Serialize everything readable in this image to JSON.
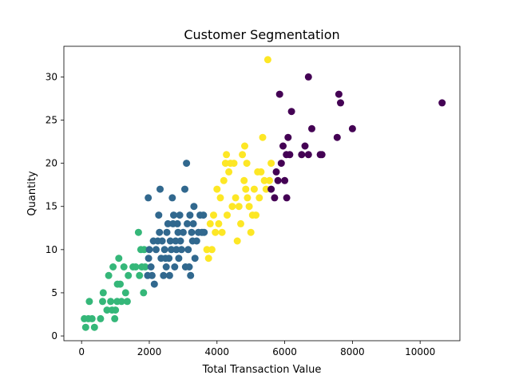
{
  "chart_data": {
    "type": "scatter",
    "title": "Customer Segmentation",
    "xlabel": "Total Transaction Value",
    "ylabel": "Quantity",
    "xlim": [
      -523,
      11175
    ],
    "ylim": [
      -0.55,
      33.55
    ],
    "xticks": [
      0,
      2000,
      4000,
      6000,
      8000,
      10000
    ],
    "yticks": [
      0,
      5,
      10,
      15,
      20,
      25,
      30
    ],
    "grid": false,
    "legend": "none",
    "colors": {
      "cluster_0": "#440154",
      "cluster_1": "#31688e",
      "cluster_2": "#35b779",
      "cluster_3": "#fde725"
    },
    "series": [
      {
        "cluster": "cluster_2",
        "points": [
          [
            80,
            2
          ],
          [
            120,
            1
          ],
          [
            200,
            2
          ],
          [
            230,
            4
          ],
          [
            310,
            2
          ],
          [
            380,
            1
          ],
          [
            560,
            2
          ],
          [
            620,
            4
          ],
          [
            640,
            5
          ],
          [
            750,
            3
          ],
          [
            800,
            7
          ],
          [
            860,
            4
          ],
          [
            900,
            3
          ],
          [
            930,
            8
          ],
          [
            980,
            2
          ],
          [
            1000,
            3
          ],
          [
            1050,
            4
          ],
          [
            1060,
            6
          ],
          [
            1100,
            9
          ],
          [
            1140,
            6
          ],
          [
            1180,
            4
          ],
          [
            1250,
            8
          ],
          [
            1300,
            5
          ],
          [
            1350,
            4
          ],
          [
            1380,
            7
          ],
          [
            1520,
            8
          ],
          [
            1600,
            8
          ],
          [
            1680,
            12
          ],
          [
            1710,
            7
          ],
          [
            1750,
            10
          ],
          [
            1780,
            8
          ],
          [
            1830,
            5
          ],
          [
            1850,
            10
          ],
          [
            1880,
            8
          ]
        ]
      },
      {
        "cluster": "cluster_1",
        "points": [
          [
            1970,
            16
          ],
          [
            1950,
            7
          ],
          [
            1980,
            9
          ],
          [
            2000,
            10
          ],
          [
            2050,
            8
          ],
          [
            2080,
            7
          ],
          [
            2120,
            11
          ],
          [
            2150,
            6
          ],
          [
            2200,
            10
          ],
          [
            2250,
            11
          ],
          [
            2280,
            14
          ],
          [
            2300,
            12
          ],
          [
            2320,
            17
          ],
          [
            2350,
            9
          ],
          [
            2380,
            11
          ],
          [
            2420,
            7
          ],
          [
            2450,
            10
          ],
          [
            2480,
            9
          ],
          [
            2500,
            8
          ],
          [
            2520,
            12
          ],
          [
            2550,
            13
          ],
          [
            2580,
            9
          ],
          [
            2600,
            7
          ],
          [
            2620,
            11
          ],
          [
            2650,
            10
          ],
          [
            2680,
            16
          ],
          [
            2700,
            13
          ],
          [
            2720,
            14
          ],
          [
            2750,
            8
          ],
          [
            2780,
            11
          ],
          [
            2800,
            10
          ],
          [
            2830,
            13
          ],
          [
            2850,
            12
          ],
          [
            2870,
            9
          ],
          [
            2900,
            14
          ],
          [
            2920,
            11
          ],
          [
            2950,
            10
          ],
          [
            3000,
            12
          ],
          [
            3050,
            17
          ],
          [
            3070,
            8
          ],
          [
            3100,
            20
          ],
          [
            3120,
            13
          ],
          [
            3150,
            10
          ],
          [
            3180,
            8
          ],
          [
            3200,
            14
          ],
          [
            3220,
            7
          ],
          [
            3250,
            12
          ],
          [
            3280,
            11
          ],
          [
            3300,
            13
          ],
          [
            3320,
            15
          ],
          [
            3350,
            9
          ],
          [
            3400,
            11
          ],
          [
            3450,
            12
          ],
          [
            3500,
            14
          ],
          [
            3550,
            12
          ],
          [
            3600,
            14
          ],
          [
            3620,
            12
          ]
        ]
      },
      {
        "cluster": "cluster_3",
        "points": [
          [
            3700,
            10
          ],
          [
            3750,
            9
          ],
          [
            3800,
            13
          ],
          [
            3850,
            10
          ],
          [
            3900,
            14
          ],
          [
            3950,
            12
          ],
          [
            4000,
            17
          ],
          [
            4050,
            13
          ],
          [
            4100,
            16
          ],
          [
            4150,
            12
          ],
          [
            4200,
            18
          ],
          [
            4250,
            20
          ],
          [
            4280,
            21
          ],
          [
            4300,
            14
          ],
          [
            4350,
            19
          ],
          [
            4400,
            20
          ],
          [
            4450,
            15
          ],
          [
            4500,
            20
          ],
          [
            4550,
            16
          ],
          [
            4600,
            11
          ],
          [
            4650,
            15
          ],
          [
            4700,
            13
          ],
          [
            4750,
            21
          ],
          [
            4800,
            18
          ],
          [
            4820,
            22
          ],
          [
            4850,
            17
          ],
          [
            4880,
            20
          ],
          [
            4900,
            16
          ],
          [
            4950,
            15
          ],
          [
            5000,
            12
          ],
          [
            5050,
            14
          ],
          [
            5100,
            17
          ],
          [
            5150,
            14
          ],
          [
            5200,
            19
          ],
          [
            5250,
            16
          ],
          [
            5300,
            19
          ],
          [
            5350,
            23
          ],
          [
            5400,
            18
          ],
          [
            5450,
            17
          ],
          [
            5500,
            32
          ],
          [
            5550,
            18
          ],
          [
            5600,
            20
          ]
        ]
      },
      {
        "cluster": "cluster_0",
        "points": [
          [
            5600,
            17
          ],
          [
            5700,
            16
          ],
          [
            5750,
            19
          ],
          [
            5800,
            18
          ],
          [
            5850,
            28
          ],
          [
            5900,
            20
          ],
          [
            5950,
            22
          ],
          [
            6000,
            18
          ],
          [
            6050,
            21
          ],
          [
            6060,
            16
          ],
          [
            6100,
            23
          ],
          [
            6150,
            21
          ],
          [
            6200,
            26
          ],
          [
            6500,
            21
          ],
          [
            6600,
            22
          ],
          [
            6700,
            30
          ],
          [
            6700,
            21
          ],
          [
            6800,
            24
          ],
          [
            7050,
            21
          ],
          [
            7100,
            21
          ],
          [
            7550,
            23
          ],
          [
            7600,
            28
          ],
          [
            7650,
            27
          ],
          [
            8000,
            24
          ],
          [
            10650,
            27
          ]
        ]
      }
    ]
  }
}
